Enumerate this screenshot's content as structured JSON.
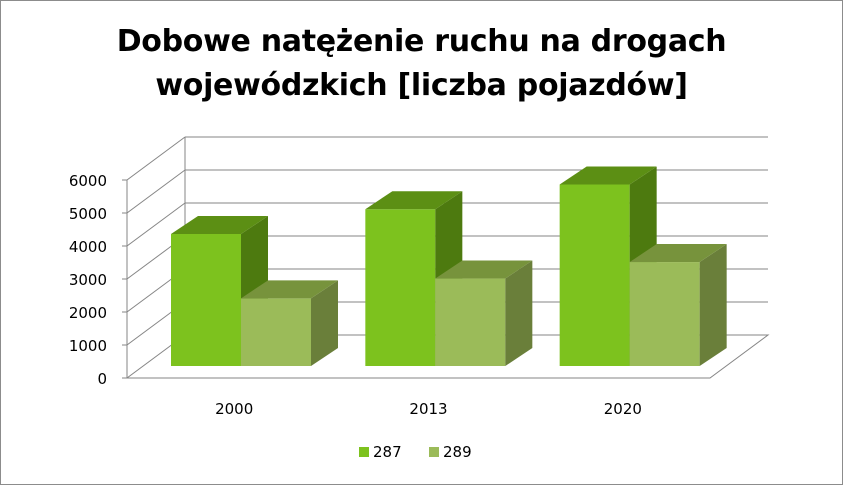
{
  "chart_data": {
    "type": "bar",
    "title": [
      "Dobowe natężenie ruchu na drogach",
      "wojewódzkich [liczba pojazdów]"
    ],
    "categories": [
      "2000",
      "2013",
      "2020"
    ],
    "series": [
      {
        "name": "287",
        "values": [
          4000,
          4750,
          5500
        ],
        "color": "#7dc21e",
        "top_color": "#5c8f14",
        "side_color": "#4d7a0f"
      },
      {
        "name": "289",
        "values": [
          2050,
          2650,
          3150
        ],
        "color": "#9bbb59",
        "top_color": "#77933c",
        "side_color": "#6a7f3a"
      }
    ],
    "yticks": [
      0,
      1000,
      2000,
      3000,
      4000,
      5000,
      6000
    ],
    "ylim": [
      0,
      6000
    ],
    "grid": true,
    "legend_position": "bottom",
    "view": "3d-clustered-column"
  }
}
